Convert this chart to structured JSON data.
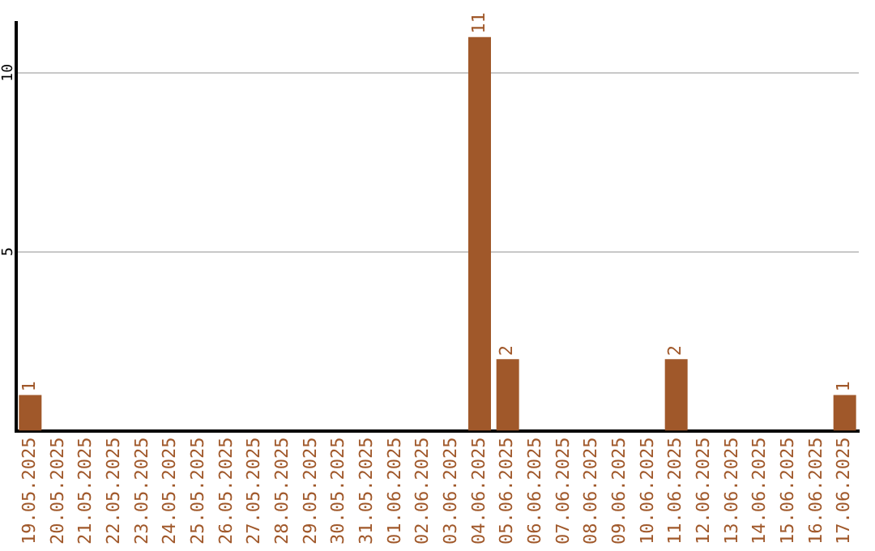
{
  "chart_data": {
    "type": "bar",
    "categories": [
      "19.05.2025",
      "20.05.2025",
      "21.05.2025",
      "22.05.2025",
      "23.05.2025",
      "24.05.2025",
      "25.05.2025",
      "26.05.2025",
      "27.05.2025",
      "28.05.2025",
      "29.05.2025",
      "30.05.2025",
      "31.05.2025",
      "01.06.2025",
      "02.06.2025",
      "03.06.2025",
      "04.06.2025",
      "05.06.2025",
      "06.06.2025",
      "07.06.2025",
      "08.06.2025",
      "09.06.2025",
      "10.06.2025",
      "11.06.2025",
      "12.06.2025",
      "13.06.2025",
      "14.06.2025",
      "15.06.2025",
      "16.06.2025",
      "17.06.2025"
    ],
    "values": [
      1,
      0,
      0,
      0,
      0,
      0,
      0,
      0,
      0,
      0,
      0,
      0,
      0,
      0,
      0,
      0,
      11,
      2,
      0,
      0,
      0,
      0,
      0,
      2,
      0,
      0,
      0,
      0,
      0,
      1
    ],
    "value_labels": [
      "1",
      null,
      null,
      null,
      null,
      null,
      null,
      null,
      null,
      null,
      null,
      null,
      null,
      null,
      null,
      null,
      "11",
      "2",
      null,
      null,
      null,
      null,
      null,
      "2",
      null,
      null,
      null,
      null,
      null,
      "1"
    ],
    "color": "#a0582a",
    "ylim": [
      0,
      11.4
    ],
    "yticks": [
      5,
      10
    ],
    "grid": "y",
    "legend": false
  }
}
